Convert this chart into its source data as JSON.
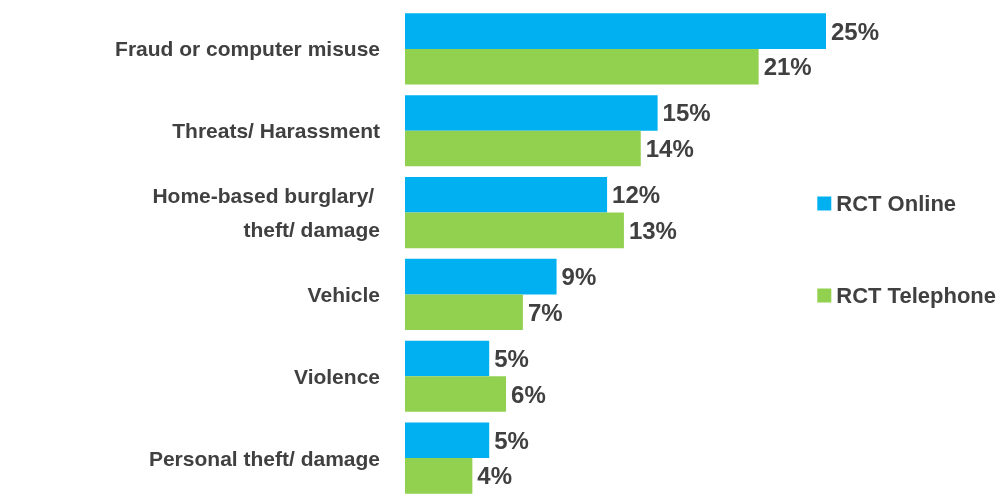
{
  "chart_data": {
    "type": "bar",
    "orientation": "horizontal",
    "categories": [
      "Fraud or computer misuse",
      "Threats/ Harassment",
      "Home-based burglary/ theft/ damage",
      "Vehicle",
      "Violence",
      "Personal theft/ damage"
    ],
    "series": [
      {
        "name": "RCT Online",
        "color": "#00b0f0",
        "values": [
          25,
          15,
          12,
          9,
          5,
          5
        ],
        "value_labels": [
          "25%",
          "15%",
          "12%",
          "9%",
          "5%",
          "5%"
        ]
      },
      {
        "name": "RCT Telephone",
        "color": "#92d050",
        "values": [
          21,
          14,
          13,
          7,
          6,
          4
        ],
        "value_labels": [
          "21%",
          "14%",
          "13%",
          "7%",
          "6%",
          "4%"
        ]
      }
    ],
    "legend": "right"
  }
}
